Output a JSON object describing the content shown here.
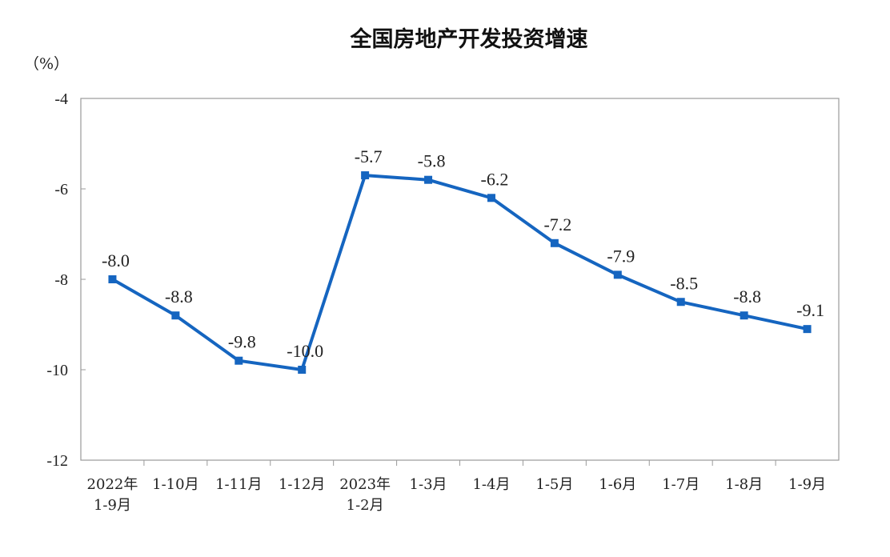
{
  "chart_data": {
    "type": "line",
    "title": "全国房地产开发投资增速",
    "unit": "（%）",
    "categories": [
      [
        "2022年",
        "1-9月"
      ],
      [
        "1-10月"
      ],
      [
        "1-11月"
      ],
      [
        "1-12月"
      ],
      [
        "2023年",
        "1-2月"
      ],
      [
        "1-3月"
      ],
      [
        "1-4月"
      ],
      [
        "1-5月"
      ],
      [
        "1-6月"
      ],
      [
        "1-7月"
      ],
      [
        "1-8月"
      ],
      [
        "1-9月"
      ]
    ],
    "values": [
      -8.0,
      -8.8,
      -9.8,
      -10.0,
      -5.7,
      -5.8,
      -6.2,
      -7.2,
      -7.9,
      -8.5,
      -8.8,
      -9.1
    ],
    "data_labels": [
      "-8.0",
      "-8.8",
      "-9.8",
      "-10.0",
      "-5.7",
      "-5.8",
      "-6.2",
      "-7.2",
      "-7.9",
      "-8.5",
      "-8.8",
      "-9.1"
    ],
    "yticks": [
      -4,
      -6,
      -8,
      -10,
      -12
    ],
    "ylim": [
      -12,
      -4
    ],
    "xlabel": "",
    "ylabel": "",
    "grid": false,
    "legend": "none",
    "colors": {
      "line": "#1565c0",
      "marker": "#1565c0",
      "frame": "#9a9a9a",
      "text": "#222222"
    }
  }
}
